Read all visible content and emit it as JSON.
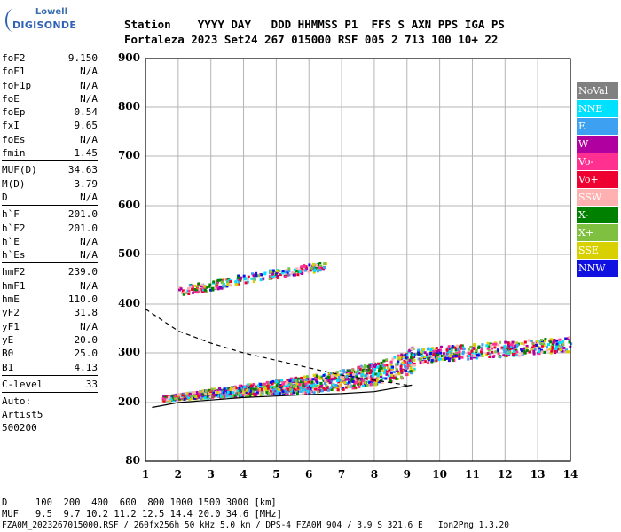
{
  "logo": {
    "line1": "Lowell",
    "line2": "DIGISONDE"
  },
  "header": {
    "line1": "Station    YYYY DAY   DDD HHMMSS P1  FFS S AXN PPS IGA PS",
    "line2": "Fortaleza 2023 Set24 267 015000 RSF 005 2 713 100 10+ 22"
  },
  "params": [
    {
      "k": "foF2",
      "v": "9.150"
    },
    {
      "k": "foF1",
      "v": "N/A"
    },
    {
      "k": "foF1p",
      "v": "N/A"
    },
    {
      "k": "foE",
      "v": "N/A"
    },
    {
      "k": "foEp",
      "v": "0.54"
    },
    {
      "k": "fxI",
      "v": "9.65"
    },
    {
      "k": "foEs",
      "v": "N/A"
    },
    {
      "k": "fmin",
      "v": "1.45"
    },
    {
      "sep": true
    },
    {
      "k": "MUF(D)",
      "v": "34.63"
    },
    {
      "k": "M(D)",
      "v": "3.79"
    },
    {
      "k": "D",
      "v": "N/A"
    },
    {
      "sep": true
    },
    {
      "k": "h`F",
      "v": "201.0"
    },
    {
      "k": "h`F2",
      "v": "201.0"
    },
    {
      "k": "h`E",
      "v": "N/A"
    },
    {
      "k": "h`Es",
      "v": "N/A"
    },
    {
      "sep": true
    },
    {
      "k": "hmF2",
      "v": "239.0"
    },
    {
      "k": "hmF1",
      "v": "N/A"
    },
    {
      "k": "hmE",
      "v": "110.0"
    },
    {
      "k": "yF2",
      "v": "31.8"
    },
    {
      "k": "yF1",
      "v": "N/A"
    },
    {
      "k": "yE",
      "v": "20.0"
    },
    {
      "k": "B0",
      "v": "25.0"
    },
    {
      "k": "B1",
      "v": "4.13"
    },
    {
      "sep": true
    },
    {
      "k": "C-level",
      "v": "33"
    },
    {
      "sep": true
    }
  ],
  "auto": [
    "Auto:",
    "Artist5",
    "500200"
  ],
  "legend": [
    {
      "label": "NoVal",
      "color": "#808080"
    },
    {
      "label": "NNE",
      "color": "#00e0ff"
    },
    {
      "label": "E",
      "color": "#3ea0f0"
    },
    {
      "label": "W",
      "color": "#b000a0"
    },
    {
      "label": "Vo-",
      "color": "#ff3090"
    },
    {
      "label": "Vo+",
      "color": "#ee0030"
    },
    {
      "label": "SSW",
      "color": "#ffb0b0"
    },
    {
      "label": "X-",
      "color": "#008000"
    },
    {
      "label": "X+",
      "color": "#80c040"
    },
    {
      "label": "SSE",
      "color": "#d8d000"
    },
    {
      "label": "NNW",
      "color": "#1010e0"
    }
  ],
  "footer": {
    "line1": "D     100  200  400  600  800 1000 1500 3000 [km]",
    "line2": "MUF   9.5  9.7 10.2 11.2 12.5 14.4 20.0 34.6 [MHz]",
    "line3": "FZA0M_2023267015000.RSF / 260fx256h 50 kHz 5.0 km / DPS-4 FZA0M 904 / 3.9 S 321.6 E   Ion2Png 1.3.20"
  },
  "chart_data": {
    "type": "scatter",
    "title": "",
    "xlabel": "",
    "ylabel": "",
    "xlim": [
      1,
      14
    ],
    "ylim": [
      80,
      900
    ],
    "xticks": [
      1,
      2,
      3,
      4,
      5,
      6,
      7,
      8,
      9,
      10,
      11,
      12,
      13,
      14
    ],
    "yticks": [
      80,
      200,
      300,
      400,
      500,
      600,
      700,
      800,
      900
    ],
    "grid": true,
    "legend_placement": "right",
    "traces": [
      {
        "name": "F2 virtual height trace",
        "x": [
          1.5,
          2,
          3,
          4,
          5,
          6,
          7,
          7.5,
          8,
          8.5,
          9,
          9.2
        ],
        "y": [
          205,
          208,
          212,
          215,
          218,
          222,
          228,
          232,
          238,
          245,
          255,
          270
        ]
      },
      {
        "name": "F2 extension",
        "x": [
          9.2,
          10,
          11,
          12,
          13,
          14
        ],
        "y": [
          280,
          285,
          290,
          295,
          300,
          305
        ]
      },
      {
        "name": "2nd hop",
        "x": [
          2,
          3,
          4,
          5,
          6,
          6.5
        ],
        "y": [
          420,
          430,
          445,
          455,
          465,
          470
        ]
      }
    ],
    "profile_line": {
      "x": [
        1.2,
        2,
        3,
        4,
        5,
        6,
        7,
        8,
        9.15
      ],
      "y": [
        190,
        200,
        205,
        210,
        213,
        216,
        218,
        222,
        235
      ]
    },
    "dashed_line": {
      "x": [
        1,
        2,
        3,
        4,
        5,
        6,
        7,
        8,
        9
      ],
      "y": [
        390,
        345,
        320,
        300,
        285,
        270,
        255,
        245,
        235
      ]
    }
  }
}
